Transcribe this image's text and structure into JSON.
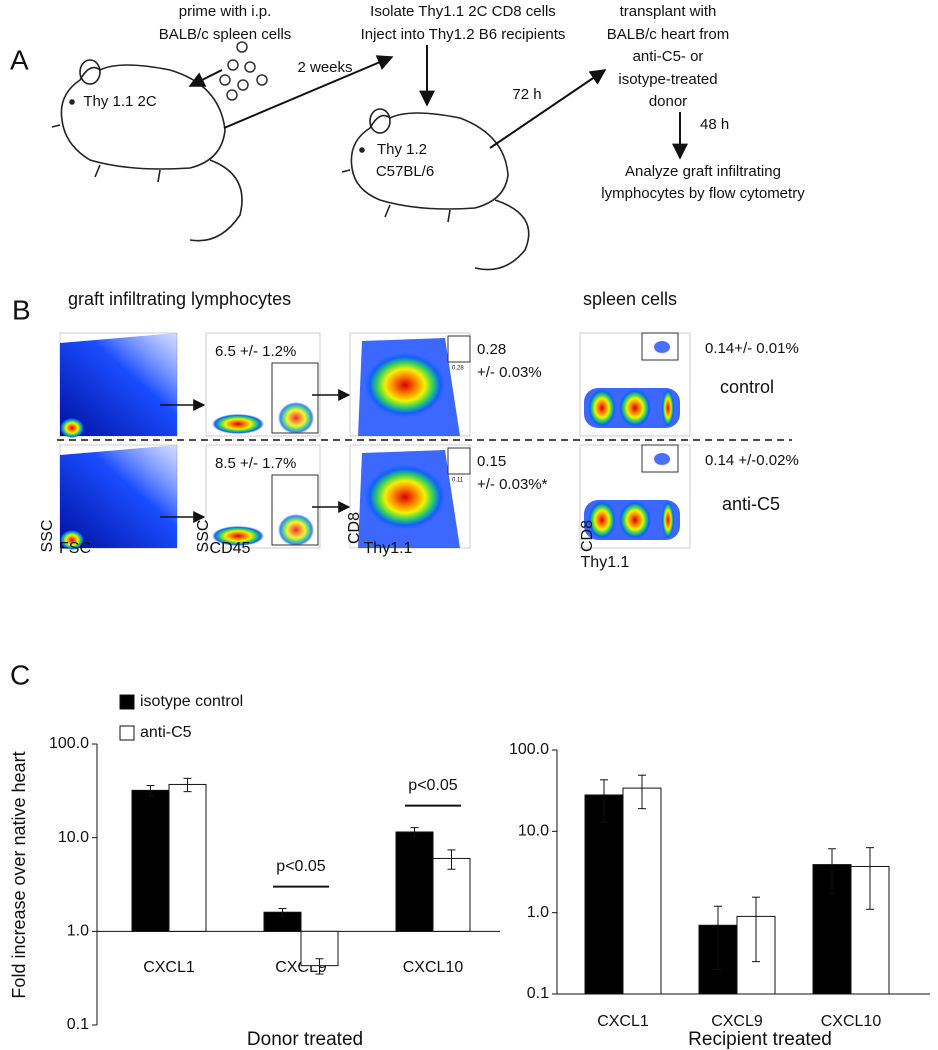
{
  "panel_a": {
    "label": "A",
    "prime": [
      "prime with i.p.",
      "BALB/c spleen cells"
    ],
    "donor_mouse": "Thy 1.1 2C",
    "interval_1": "2 weeks",
    "isolate": [
      "Isolate Thy1.1 2C CD8 cells",
      "Inject into Thy1.2 B6 recipients"
    ],
    "recipient_mouse": [
      "Thy 1.2",
      "C57BL/6"
    ],
    "interval_2": "72 h",
    "transplant": [
      "transplant with",
      "BALB/c heart from",
      "anti-C5- or",
      "isotype-treated",
      "donor"
    ],
    "interval_3": "48 h",
    "analyze": [
      "Analyze graft infiltrating",
      "lymphocytes by flow cytometry"
    ]
  },
  "panel_b": {
    "label": "B",
    "left_title": "graft infiltrating lymphocytes",
    "right_title": "spleen cells",
    "rows": [
      {
        "cd45_gate": "6.5 +/- 1.2%",
        "thy_gate": [
          "0.28",
          "+/- 0.03%"
        ],
        "gate_inner": "0.28",
        "spleen_gate": "0.14+/- 0.01%",
        "group": "control"
      },
      {
        "cd45_gate": "8.5 +/- 1.7%",
        "thy_gate": [
          "0.15",
          "+/- 0.03%*"
        ],
        "gate_inner": "0.11",
        "spleen_gate": "0.14 +/-0.02%",
        "group": "anti-C5"
      }
    ],
    "axes": [
      [
        "SSC",
        "FSC"
      ],
      [
        "SSC",
        "CD45"
      ],
      [
        "CD8",
        "Thy1.1"
      ],
      [
        "CD8",
        "Thy1.1"
      ]
    ]
  },
  "panel_c": {
    "label": "C"
  },
  "chart_data": [
    {
      "type": "bar",
      "y_label": "Fold increase over native heart",
      "x_label": "Donor treated",
      "log_y": true,
      "x_axis_crosses": 1,
      "legend": "top-left",
      "categories": [
        "CXCL1",
        "CXCL9",
        "CXCL10"
      ],
      "series": [
        {
          "name": "isotype control",
          "color": "#000000",
          "values": [
            32,
            1.6,
            11.5
          ],
          "errors": [
            4,
            0.15,
            1.3
          ]
        },
        {
          "name": "anti-C5",
          "color": "#ffffff",
          "values": [
            37,
            0.43,
            6.0
          ],
          "errors": [
            6,
            0.08,
            1.4
          ]
        }
      ],
      "annotations": [
        {
          "text": "p<0.05",
          "category": 1
        },
        {
          "text": "p<0.05",
          "category": 2
        }
      ],
      "ylim": [
        0.1,
        100
      ],
      "yticks": [
        0.1,
        {
          "value": 1,
          "label": "1.0"
        },
        {
          "value": 10,
          "label": "10.0"
        },
        {
          "value": 100,
          "label": "100.0"
        }
      ]
    },
    {
      "type": "bar",
      "x_label": "Recipient treated",
      "log_y": true,
      "x_axis_crosses": 0.1,
      "categories": [
        "CXCL1",
        "CXCL9",
        "CXCL10"
      ],
      "series": [
        {
          "color": "#000000",
          "values": [
            28,
            0.7,
            3.9
          ],
          "errors": [
            15,
            0.5,
            2.2
          ]
        },
        {
          "color": "#ffffff",
          "values": [
            34,
            0.9,
            3.7
          ],
          "errors": [
            15,
            0.65,
            2.6
          ]
        }
      ],
      "ylim": [
        0.1,
        100
      ],
      "yticks": [
        0.1,
        {
          "value": 1,
          "label": "1.0"
        },
        {
          "value": 10,
          "label": "10.0"
        },
        {
          "value": 100,
          "label": "100.0"
        }
      ]
    }
  ]
}
